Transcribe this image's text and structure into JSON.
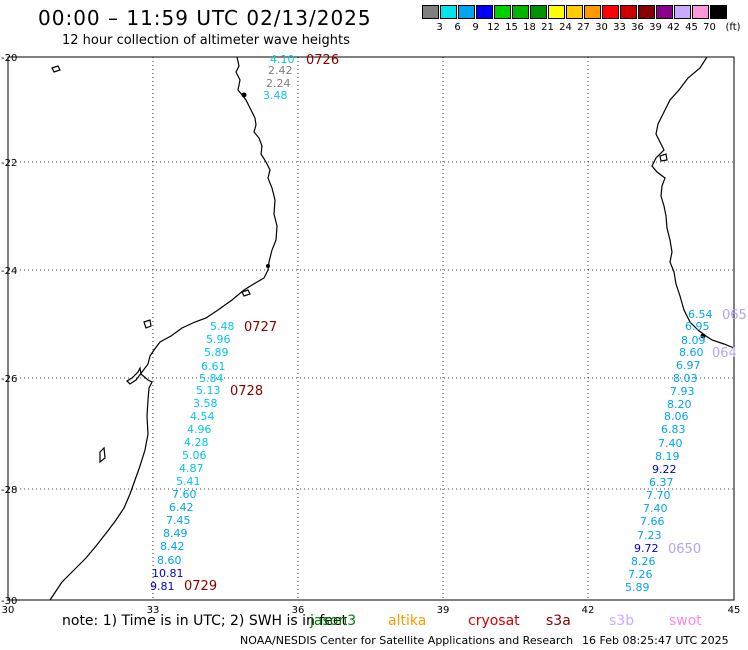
{
  "header": {
    "title": "00:00 – 11:59 UTC 02/13/2025",
    "subtitle": "12 hour collection of altimeter wave heights"
  },
  "color_scale": {
    "unit": "(ft)",
    "bins": [
      {
        "color": "#7f7f7f",
        "label": "3"
      },
      {
        "color": "#00e5ee",
        "label": "6"
      },
      {
        "color": "#00a5ee",
        "label": "9"
      },
      {
        "color": "#0000ff",
        "label": "12"
      },
      {
        "color": "#00d200",
        "label": "15"
      },
      {
        "color": "#00b400",
        "label": "18"
      },
      {
        "color": "#009100",
        "label": "21"
      },
      {
        "color": "#ffff00",
        "label": "24"
      },
      {
        "color": "#ffcc00",
        "label": "27"
      },
      {
        "color": "#ff9900",
        "label": "30"
      },
      {
        "color": "#ff0000",
        "label": "33"
      },
      {
        "color": "#cc0000",
        "label": "36"
      },
      {
        "color": "#880000",
        "label": "39"
      },
      {
        "color": "#8b008b",
        "label": "42"
      },
      {
        "color": "#ccaaff",
        "label": "45"
      },
      {
        "color": "#ff99dd",
        "label": "70"
      },
      {
        "color": "#000000",
        "label": ""
      }
    ]
  },
  "map": {
    "lon_ticks": [
      "30",
      "33",
      "36",
      "39",
      "42",
      "45"
    ],
    "lat_ticks": [
      "-20",
      "-22",
      "-24",
      "-26",
      "-28",
      "-30"
    ],
    "pass_labels": [
      {
        "text": "0726",
        "color": "#880000"
      },
      {
        "text": "0727",
        "color": "#880000"
      },
      {
        "text": "0728",
        "color": "#880000"
      },
      {
        "text": "0729",
        "color": "#880000"
      },
      {
        "text": "065",
        "color": "#b8a2ee"
      },
      {
        "text": "064",
        "color": "#b8a2ee"
      },
      {
        "text": "0650",
        "color": "#b8a2ee"
      }
    ],
    "west_track": [
      {
        "text": "4.10",
        "color": "#00c8e6"
      },
      {
        "text": "2.42",
        "color": "#7f7f7f"
      },
      {
        "text": "2.24",
        "color": "#7f7f7f"
      },
      {
        "text": "3.48",
        "color": "#00c8e6"
      },
      {
        "text": "5.48",
        "color": "#00c8e6"
      },
      {
        "text": "5.96",
        "color": "#00c8e6"
      },
      {
        "text": "5.89",
        "color": "#00c8e6"
      },
      {
        "text": "6.61",
        "color": "#00c8e6"
      },
      {
        "text": "5.84",
        "color": "#00c8e6"
      },
      {
        "text": "5.13",
        "color": "#00c8e6"
      },
      {
        "text": "3.58",
        "color": "#00c8e6"
      },
      {
        "text": "4.54",
        "color": "#00c8e6"
      },
      {
        "text": "4.96",
        "color": "#00c8e6"
      },
      {
        "text": "4.28",
        "color": "#00c8e6"
      },
      {
        "text": "5.06",
        "color": "#00c8e6"
      },
      {
        "text": "4.87",
        "color": "#00c8e6"
      },
      {
        "text": "5.41",
        "color": "#00c8e6"
      },
      {
        "text": "7.60",
        "color": "#00a5ee"
      },
      {
        "text": "6.42",
        "color": "#00a5ee"
      },
      {
        "text": "7.45",
        "color": "#00a5ee"
      },
      {
        "text": "8.49",
        "color": "#00a5ee"
      },
      {
        "text": "8.42",
        "color": "#00a5ee"
      },
      {
        "text": "8.60",
        "color": "#00a5ee"
      },
      {
        "text": "10.81",
        "color": "#0000cc"
      },
      {
        "text": "9.81",
        "color": "#0000cc"
      }
    ],
    "east_track": [
      {
        "text": "6.54",
        "color": "#00a5ee"
      },
      {
        "text": "6.95",
        "color": "#00a5ee"
      },
      {
        "text": "8.09",
        "color": "#00a5ee"
      },
      {
        "text": "8.60",
        "color": "#00a5ee"
      },
      {
        "text": "6.97",
        "color": "#00a5ee"
      },
      {
        "text": "8.03",
        "color": "#00a5ee"
      },
      {
        "text": "7.93",
        "color": "#00a5ee"
      },
      {
        "text": "8.20",
        "color": "#00a5ee"
      },
      {
        "text": "8.06",
        "color": "#00a5ee"
      },
      {
        "text": "6.83",
        "color": "#00a5ee"
      },
      {
        "text": "7.40",
        "color": "#00a5ee"
      },
      {
        "text": "8.19",
        "color": "#00a5ee"
      },
      {
        "text": "9.22",
        "color": "#0000cc"
      },
      {
        "text": "6.37",
        "color": "#00a5ee"
      },
      {
        "text": "7.70",
        "color": "#00a5ee"
      },
      {
        "text": "7.40",
        "color": "#00a5ee"
      },
      {
        "text": "7.66",
        "color": "#00a5ee"
      },
      {
        "text": "7.23",
        "color": "#00a5ee"
      },
      {
        "text": "9.72",
        "color": "#0000cc"
      },
      {
        "text": "8.26",
        "color": "#00a5ee"
      },
      {
        "text": "7.26",
        "color": "#00a5ee"
      },
      {
        "text": "5.89",
        "color": "#00a5ee"
      }
    ]
  },
  "footer": {
    "note": "note: 1) Time is in UTC; 2) SWH is in feet",
    "missions": [
      {
        "name": "jason3",
        "color": "#008000"
      },
      {
        "name": "altika",
        "color": "#ff9900"
      },
      {
        "name": "cryosat",
        "color": "#cc0000"
      },
      {
        "name": "s3a",
        "color": "#880000"
      },
      {
        "name": "s3b",
        "color": "#ccaaff"
      },
      {
        "name": "swot",
        "color": "#ff88dd"
      }
    ],
    "credit": "NOAA/NESDIS Center for Satellite Applications and Research",
    "timestamp": "16 Feb 08:25:47 UTC 2025"
  }
}
